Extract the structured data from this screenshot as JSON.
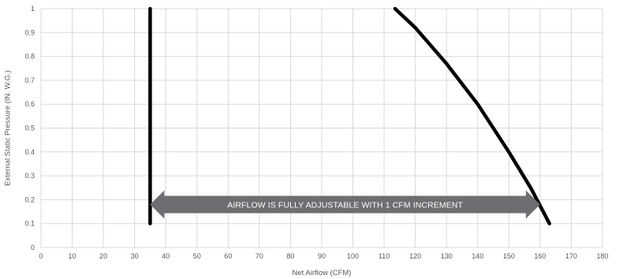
{
  "chart_data": {
    "type": "line",
    "title": "",
    "xlabel": "Net Airflow (CFM)",
    "ylabel": "External Static Pressure (IN. W.G.)",
    "xlim": [
      0,
      180
    ],
    "ylim": [
      0,
      1
    ],
    "x_ticks": [
      "0",
      "10",
      "20",
      "30",
      "40",
      "50",
      "60",
      "70",
      "80",
      "90",
      "100",
      "110",
      "120",
      "130",
      "140",
      "150",
      "160",
      "170",
      "180"
    ],
    "y_ticks": [
      "0",
      "0.1",
      "0.2",
      "0.3",
      "0.4",
      "0.5",
      "0.6",
      "0.7",
      "0.8",
      "0.9",
      "1"
    ],
    "grid": true,
    "legend": "none",
    "series": [
      {
        "color": "#000000",
        "points": [
          [
            35,
            0.1
          ],
          [
            35,
            1.0
          ]
        ]
      },
      {
        "color": "#000000",
        "points": [
          [
            113.5,
            1.0
          ],
          [
            120,
            0.92
          ],
          [
            130,
            0.77
          ],
          [
            140,
            0.6
          ],
          [
            150,
            0.4
          ],
          [
            157,
            0.25
          ],
          [
            163,
            0.1
          ]
        ]
      }
    ],
    "annotation": {
      "text": "AIRFLOW IS FULLY ADJUSTABLE WITH 1 CFM INCREMENT",
      "x_from": 35,
      "x_to": 160,
      "y": 0.18,
      "color": "#6d6e71"
    }
  }
}
